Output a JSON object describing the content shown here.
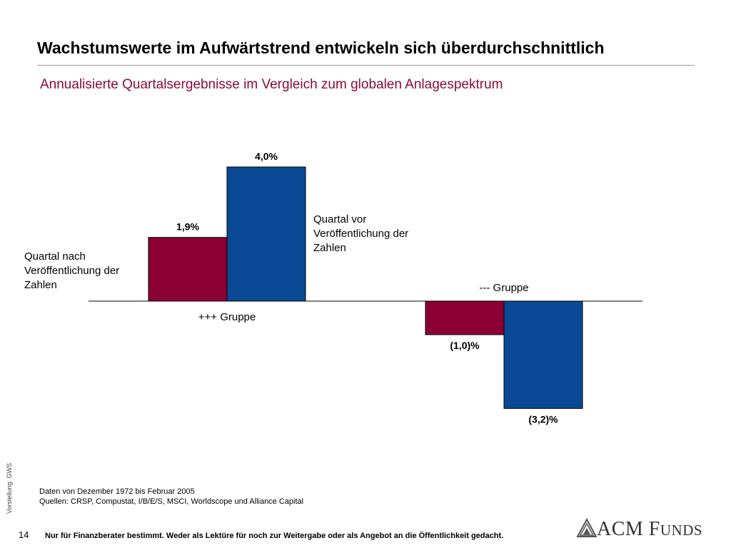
{
  "header": {
    "title": "Wachstumswerte im Aufwärtstrend entwickeln sich überdurchschnittlich",
    "subtitle": "Annualisierte Quartalsergebnisse im Vergleich zum globalen Anlagespektrum"
  },
  "chart_data": {
    "type": "bar",
    "categories": [
      "+++ Gruppe",
      "--- Gruppe"
    ],
    "series": [
      {
        "name": "Quartal nach Veröffentlichung der Zahlen",
        "color": "#8b0033",
        "values": [
          1.9,
          -1.0
        ],
        "labels": [
          "1,9%",
          "(1,0)%"
        ]
      },
      {
        "name": "Quartal vor Veröffentlichung der Zahlen",
        "color": "#0a4a94",
        "values": [
          4.0,
          -3.2
        ],
        "labels": [
          "4,0%",
          "(3,2)%"
        ]
      }
    ],
    "legend_lines": [
      [
        "Quartal nach",
        "Veröffentlichung der",
        "Zahlen"
      ],
      [
        "Quartal vor",
        "Veröffentlichung der",
        "Zahlen"
      ]
    ],
    "ylim": [
      -3.2,
      4.0
    ],
    "grid": false
  },
  "notes": {
    "data_range": "Daten von Dezember 1972 bis Februar 2005",
    "sources": "Quellen: CRSP, Compustat, I/B/E/S, MSCI, Worldscope und Alliance Capital"
  },
  "side_note": "Vorstellung: GWS",
  "footer": {
    "page_number": "14",
    "disclaimer": "Nur für Finanzberater bestimmt. Weder als Lektüre für noch zur Weitergabe oder als Angebot an die Öffentlichkeit gedacht."
  },
  "logo": {
    "brand_main": "ACM F",
    "brand_small": "UNDS",
    "icon": "acm-mountain-logo-icon"
  }
}
